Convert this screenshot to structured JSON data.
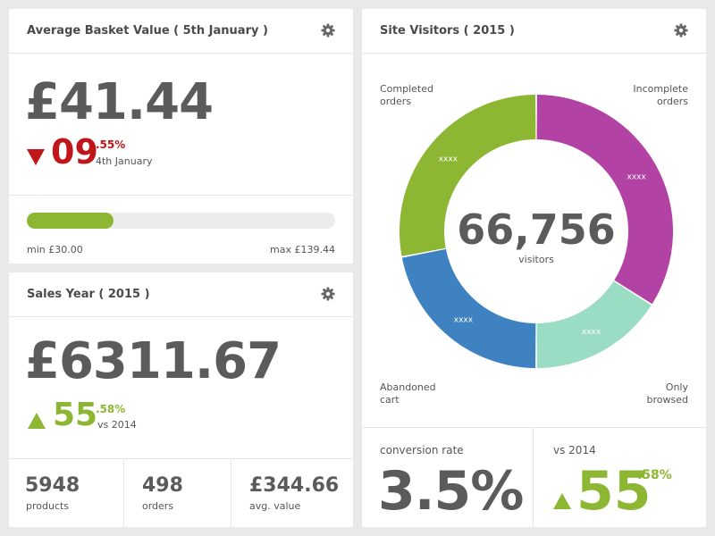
{
  "basket": {
    "title": "Average Basket Value ( 5th January )",
    "value": "£41.44",
    "change_int": "09",
    "change_dec": ".55%",
    "change_sub": "4th January",
    "progress": 0.28,
    "min_label": "min £30.00",
    "max_label": "max £139.44",
    "colors": {
      "down": "#c0161a",
      "bar": "#8db632"
    }
  },
  "sales": {
    "title": "Sales Year ( 2015 )",
    "value": "£6311.67",
    "change_int": "55",
    "change_dec": ".58%",
    "change_sub": "vs 2014",
    "stats": [
      {
        "value": "5948",
        "label": "products"
      },
      {
        "value": "498",
        "label": "orders"
      },
      {
        "value": "£344.66",
        "label": "avg. value"
      }
    ]
  },
  "visitors": {
    "title": "Site Visitors ( 2015 )",
    "total": "66,756",
    "total_label": "visitors",
    "labels": {
      "completed": [
        "Completed",
        "orders"
      ],
      "incomplete": [
        "Incomplete",
        "orders"
      ],
      "abandoned": [
        "Abandoned",
        "cart"
      ],
      "browsed": [
        "Only",
        "browsed"
      ]
    },
    "conversion_label": "conversion rate",
    "conversion_value": "3.5%",
    "vs_label": "vs 2014",
    "vs_int": "55",
    "vs_dec": ".58%"
  },
  "chart_data": {
    "type": "pie",
    "title": "Site Visitors ( 2015 )",
    "categories": [
      "Incomplete orders",
      "Only browsed",
      "Abandoned cart",
      "Completed orders"
    ],
    "values": [
      34,
      16,
      22,
      28
    ],
    "segment_labels": [
      "xxxx",
      "xxxx",
      "xxxx",
      "xxxx"
    ],
    "colors": [
      "#b243a4",
      "#9adcc4",
      "#3f82c2",
      "#8db632"
    ],
    "center_value": "66,756",
    "center_label": "visitors"
  }
}
